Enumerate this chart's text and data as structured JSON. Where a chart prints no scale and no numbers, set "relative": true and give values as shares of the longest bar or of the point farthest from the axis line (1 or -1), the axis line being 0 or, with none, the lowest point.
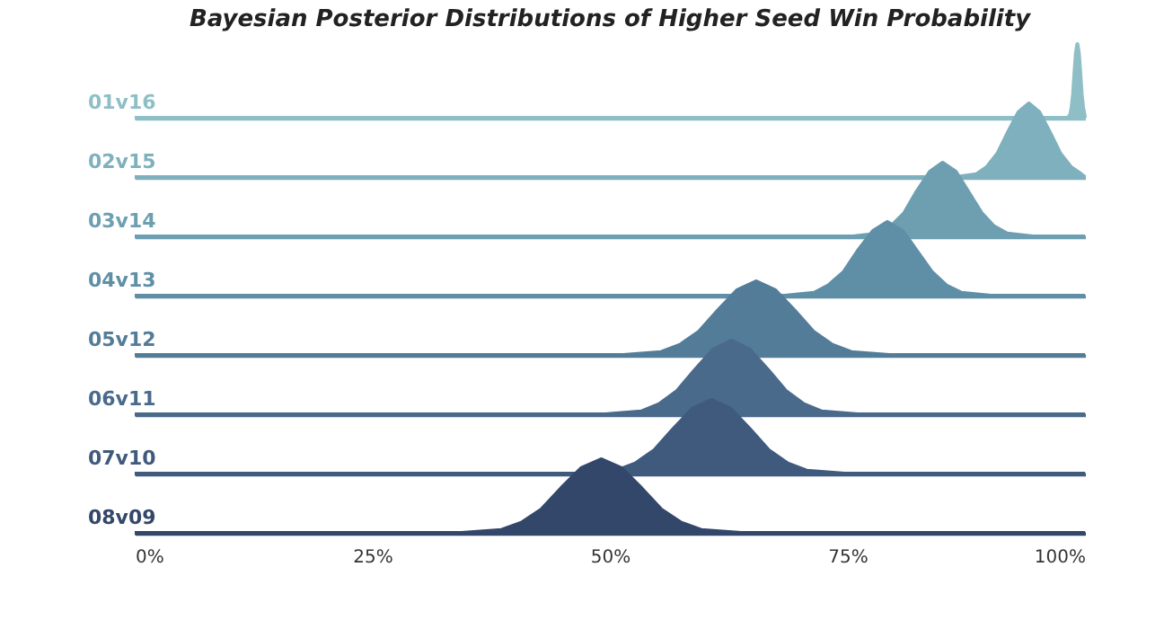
{
  "chart_data": [
    {
      "type": "area",
      "title": "Bayesian Posterior Distributions of Higher Seed Win Probability",
      "ylabel": "01v16",
      "relative": true,
      "xlim": [
        0,
        1
      ],
      "series": [
        {
          "color": "#8fbfc6",
          "x": [
            0,
            0.9815,
            0.9845,
            0.986,
            0.9875,
            0.989,
            0.9905,
            0.992,
            0.9935,
            0.995,
            0.9965,
            0.998,
            0.9995,
            1
          ],
          "values": [
            0,
            0,
            0.04,
            0.14,
            0.32,
            0.61,
            0.88,
            1,
            0.88,
            0.61,
            0.32,
            0.14,
            0.04,
            0
          ]
        }
      ]
    },
    {
      "type": "area",
      "ylabel": "02v15",
      "relative": true,
      "xlim": [
        0,
        1
      ],
      "series": [
        {
          "color": "#7eb0bd",
          "x": [
            0,
            0.864,
            0.886,
            0.897,
            0.908,
            0.919,
            0.93,
            0.941,
            0.952,
            0.963,
            0.974,
            0.985,
            0.996,
            1
          ],
          "values": [
            0,
            0,
            0.04,
            0.14,
            0.32,
            0.61,
            0.88,
            1,
            0.88,
            0.61,
            0.32,
            0.14,
            0.04,
            0
          ]
        }
      ]
    },
    {
      "type": "area",
      "ylabel": "03v14",
      "relative": true,
      "xlim": [
        0,
        1
      ],
      "series": [
        {
          "color": "#6d9fb1",
          "x": [
            0,
            0.756,
            0.783,
            0.796,
            0.81,
            0.823,
            0.837,
            0.85,
            0.864,
            0.877,
            0.891,
            0.904,
            0.918,
            0.945,
            1
          ],
          "values": [
            0,
            0,
            0.04,
            0.14,
            0.32,
            0.61,
            0.88,
            1,
            0.88,
            0.61,
            0.32,
            0.14,
            0.04,
            0,
            0
          ]
        }
      ]
    },
    {
      "type": "area",
      "ylabel": "04v13",
      "relative": true,
      "xlim": [
        0,
        1
      ],
      "series": [
        {
          "color": "#5f8fa7",
          "x": [
            0,
            0.684,
            0.715,
            0.73,
            0.746,
            0.761,
            0.777,
            0.792,
            0.808,
            0.823,
            0.839,
            0.854,
            0.87,
            0.901,
            1
          ],
          "values": [
            0,
            0,
            0.04,
            0.14,
            0.32,
            0.61,
            0.88,
            1,
            0.88,
            0.61,
            0.32,
            0.14,
            0.04,
            0,
            0
          ]
        }
      ]
    },
    {
      "type": "area",
      "ylabel": "05v12",
      "relative": true,
      "xlim": [
        0,
        1
      ],
      "series": [
        {
          "color": "#537c99",
          "x": [
            0,
            0.514,
            0.554,
            0.574,
            0.594,
            0.614,
            0.634,
            0.654,
            0.674,
            0.694,
            0.714,
            0.734,
            0.754,
            0.794,
            1
          ],
          "values": [
            0,
            0,
            0.04,
            0.14,
            0.32,
            0.61,
            0.88,
            1,
            0.88,
            0.61,
            0.32,
            0.14,
            0.04,
            0,
            0
          ]
        }
      ]
    },
    {
      "type": "area",
      "ylabel": "06v11",
      "relative": true,
      "xlim": [
        0,
        1
      ],
      "series": [
        {
          "color": "#4a6a8b",
          "x": [
            0,
            0.495,
            0.533,
            0.552,
            0.571,
            0.59,
            0.609,
            0.628,
            0.647,
            0.666,
            0.685,
            0.704,
            0.723,
            0.761,
            1
          ],
          "values": [
            0,
            0,
            0.04,
            0.14,
            0.32,
            0.61,
            0.88,
            1,
            0.88,
            0.61,
            0.32,
            0.14,
            0.04,
            0,
            0
          ]
        }
      ]
    },
    {
      "type": "area",
      "ylabel": "07v10",
      "relative": true,
      "xlim": [
        0,
        1
      ],
      "series": [
        {
          "color": "#3f5a7c",
          "x": [
            0,
            0.467,
            0.507,
            0.527,
            0.547,
            0.567,
            0.587,
            0.607,
            0.627,
            0.647,
            0.667,
            0.687,
            0.707,
            0.747,
            1
          ],
          "values": [
            0,
            0,
            0.04,
            0.14,
            0.32,
            0.61,
            0.88,
            1,
            0.88,
            0.61,
            0.32,
            0.14,
            0.04,
            0,
            0
          ]
        }
      ]
    },
    {
      "type": "area",
      "ylabel": "08v09",
      "relative": true,
      "xlim": [
        0,
        1
      ],
      "xticks": [
        {
          "value": 0,
          "label": "0%"
        },
        {
          "value": 0.25,
          "label": "25%"
        },
        {
          "value": 0.5,
          "label": "50%"
        },
        {
          "value": 0.75,
          "label": "75%"
        },
        {
          "value": 1,
          "label": "100%"
        }
      ],
      "tick_labels": "x",
      "series": [
        {
          "color": "#33476a",
          "x": [
            0,
            0.344,
            0.386,
            0.407,
            0.428,
            0.449,
            0.47,
            0.491,
            0.512,
            0.533,
            0.554,
            0.575,
            0.596,
            0.638,
            1
          ],
          "values": [
            0,
            0,
            0.04,
            0.14,
            0.32,
            0.61,
            0.88,
            1,
            0.88,
            0.61,
            0.32,
            0.14,
            0.04,
            0,
            0
          ]
        }
      ]
    }
  ]
}
